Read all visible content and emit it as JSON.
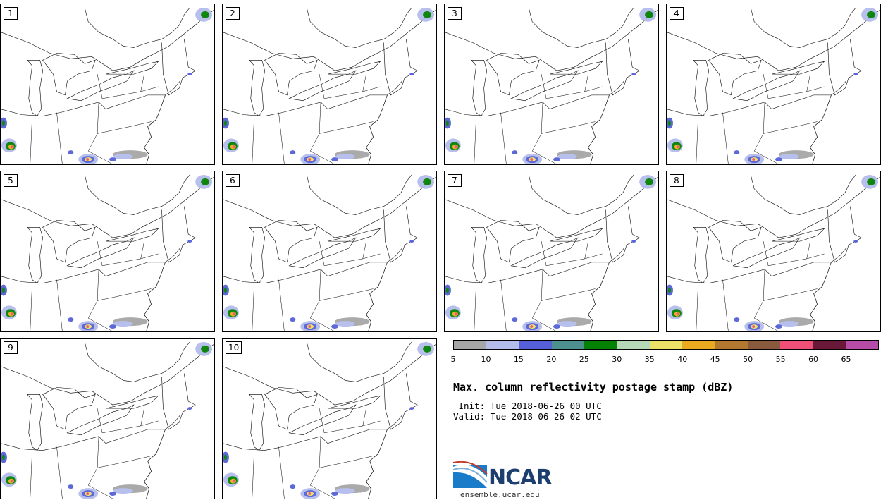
{
  "panels": [
    {
      "label": "1"
    },
    {
      "label": "2"
    },
    {
      "label": "3"
    },
    {
      "label": "4"
    },
    {
      "label": "5"
    },
    {
      "label": "6"
    },
    {
      "label": "7"
    },
    {
      "label": "8"
    },
    {
      "label": "9"
    },
    {
      "label": "10"
    }
  ],
  "colorbar": {
    "colors": [
      "#a6a6a6",
      "#b4bcec",
      "#5560d8",
      "#4c9090",
      "#048204",
      "#b5d9b7",
      "#ece168",
      "#eaaa20",
      "#b3782f",
      "#8a5a3e",
      "#f05078",
      "#6a1838",
      "#b44ca8"
    ],
    "ticks": [
      "5",
      "10",
      "15",
      "20",
      "25",
      "30",
      "35",
      "40",
      "45",
      "50",
      "55",
      "60",
      "65"
    ]
  },
  "title": "Max. column reflectivity postage stamp (dBZ)",
  "init": " Init: Tue 2018-06-26 00 UTC",
  "valid": "Valid: Tue 2018-06-26 02 UTC",
  "logo": {
    "text": "NCAR",
    "url": "ensemble.ucar.edu"
  }
}
